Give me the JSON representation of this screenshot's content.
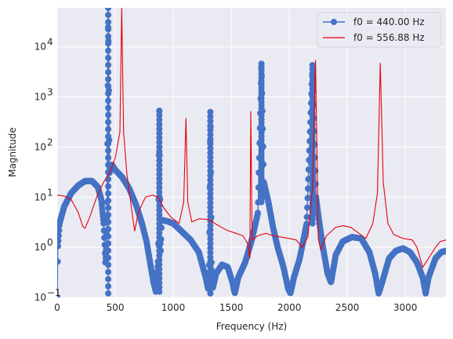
{
  "chart_data": {
    "type": "line",
    "title": "",
    "xlabel": "Frequency (Hz)",
    "ylabel": "Magnitude",
    "xlim": [
      0,
      3350
    ],
    "ylim": [
      0.1,
      60000
    ],
    "yscale": "log",
    "grid": true,
    "legend_position": "top-right",
    "x_ticks": [
      0,
      500,
      1000,
      1500,
      2000,
      2500,
      3000
    ],
    "x_tick_labels": [
      "0",
      "500",
      "1000",
      "1500",
      "2000",
      "2500",
      "3000"
    ],
    "y_ticks": [
      0.1,
      1,
      10,
      100,
      1000,
      10000
    ],
    "y_tick_labels": [
      {
        "base": "10",
        "exp": "−1"
      },
      {
        "base": "10",
        "exp": "0"
      },
      {
        "base": "10",
        "exp": "1"
      },
      {
        "base": "10",
        "exp": "2"
      },
      {
        "base": "10",
        "exp": "3"
      },
      {
        "base": "10",
        "exp": "4"
      }
    ],
    "series": [
      {
        "name": "f0 = 440.00 Hz",
        "color": "#4472c4",
        "style": "stem-markers",
        "base_curve": [
          [
            1,
            0.1
          ],
          [
            5,
            0.9
          ],
          [
            20,
            3.0
          ],
          [
            60,
            6.5
          ],
          [
            120,
            12
          ],
          [
            180,
            17
          ],
          [
            240,
            21
          ],
          [
            300,
            21
          ],
          [
            350,
            16
          ],
          [
            380,
            9
          ],
          [
            400,
            3
          ],
          [
            410,
            1.0
          ],
          [
            415,
            0.5
          ],
          [
            420,
            0.7
          ],
          [
            430,
            8
          ],
          [
            440,
            60000
          ],
          [
            450,
            30
          ],
          [
            470,
            45
          ],
          [
            500,
            35
          ],
          [
            560,
            25
          ],
          [
            620,
            15
          ],
          [
            680,
            7
          ],
          [
            730,
            3
          ],
          [
            770,
            1.3
          ],
          [
            800,
            0.5
          ],
          [
            830,
            0.2
          ],
          [
            850,
            0.13
          ],
          [
            870,
            0.6
          ],
          [
            880,
            530
          ],
          [
            890,
            0.6
          ],
          [
            900,
            3.5
          ],
          [
            950,
            3.3
          ],
          [
            1000,
            3.0
          ],
          [
            1080,
            2.0
          ],
          [
            1150,
            1.4
          ],
          [
            1220,
            0.8
          ],
          [
            1280,
            0.25
          ],
          [
            1300,
            0.15
          ],
          [
            1310,
            0.5
          ],
          [
            1320,
            500
          ],
          [
            1330,
            0.5
          ],
          [
            1340,
            0.15
          ],
          [
            1370,
            0.3
          ],
          [
            1420,
            0.45
          ],
          [
            1470,
            0.4
          ],
          [
            1510,
            0.2
          ],
          [
            1530,
            0.12
          ],
          [
            1560,
            0.25
          ],
          [
            1620,
            0.5
          ],
          [
            1680,
            1.5
          ],
          [
            1730,
            5
          ],
          [
            1760,
            4600
          ],
          [
            1780,
            20
          ],
          [
            1820,
            8
          ],
          [
            1860,
            2.5
          ],
          [
            1900,
            1.0
          ],
          [
            1950,
            0.4
          ],
          [
            1990,
            0.15
          ],
          [
            2010,
            0.12
          ],
          [
            2040,
            0.25
          ],
          [
            2090,
            0.6
          ],
          [
            2150,
            3
          ],
          [
            2200,
            4300
          ],
          [
            2230,
            10
          ],
          [
            2260,
            3.0
          ],
          [
            2290,
            1.0
          ],
          [
            2330,
            0.3
          ],
          [
            2360,
            0.2
          ],
          [
            2400,
            0.7
          ],
          [
            2460,
            1.3
          ],
          [
            2540,
            1.6
          ],
          [
            2620,
            1.5
          ],
          [
            2690,
            0.8
          ],
          [
            2740,
            0.3
          ],
          [
            2770,
            0.12
          ],
          [
            2800,
            0.2
          ],
          [
            2860,
            0.6
          ],
          [
            2920,
            0.85
          ],
          [
            2980,
            0.95
          ],
          [
            3040,
            0.8
          ],
          [
            3100,
            0.5
          ],
          [
            3150,
            0.25
          ],
          [
            3175,
            0.12
          ],
          [
            3200,
            0.25
          ],
          [
            3260,
            0.6
          ],
          [
            3310,
            0.8
          ],
          [
            3350,
            0.85
          ]
        ],
        "stems": [
          {
            "x": 440,
            "top": 60000,
            "bottom": 0.12
          },
          {
            "x": 880,
            "top": 530,
            "bottom": 0.13
          },
          {
            "x": 1320,
            "top": 500,
            "bottom": 0.12
          },
          {
            "x": 1760,
            "top": 4600,
            "bottom": 8
          },
          {
            "x": 2200,
            "top": 4300,
            "bottom": 3
          }
        ]
      },
      {
        "name": "f0 = 556.88 Hz",
        "color": "#e8000b",
        "style": "line",
        "points": [
          [
            0,
            11
          ],
          [
            60,
            10.5
          ],
          [
            120,
            9
          ],
          [
            180,
            5
          ],
          [
            220,
            2.6
          ],
          [
            240,
            2.4
          ],
          [
            280,
            4
          ],
          [
            340,
            10
          ],
          [
            400,
            20
          ],
          [
            450,
            30
          ],
          [
            500,
            60
          ],
          [
            540,
            200
          ],
          [
            556,
            60000
          ],
          [
            572,
            200
          ],
          [
            600,
            30
          ],
          [
            640,
            6
          ],
          [
            667,
            2.1
          ],
          [
            700,
            5
          ],
          [
            760,
            10
          ],
          [
            820,
            11
          ],
          [
            870,
            10
          ],
          [
            920,
            6
          ],
          [
            980,
            4
          ],
          [
            1050,
            3
          ],
          [
            1090,
            8
          ],
          [
            1110,
            380
          ],
          [
            1125,
            8
          ],
          [
            1160,
            3.2
          ],
          [
            1220,
            3.7
          ],
          [
            1300,
            3.6
          ],
          [
            1380,
            2.8
          ],
          [
            1460,
            2.2
          ],
          [
            1540,
            1.9
          ],
          [
            1600,
            1.7
          ],
          [
            1640,
            1.2
          ],
          [
            1660,
            0.6
          ],
          [
            1668,
            520
          ],
          [
            1680,
            1.4
          ],
          [
            1730,
            1.7
          ],
          [
            1800,
            1.9
          ],
          [
            1860,
            1.7
          ],
          [
            1930,
            1.6
          ],
          [
            2000,
            1.5
          ],
          [
            2060,
            1.4
          ],
          [
            2110,
            1.0
          ],
          [
            2160,
            1.6
          ],
          [
            2200,
            15
          ],
          [
            2226,
            5500
          ],
          [
            2250,
            1.5
          ],
          [
            2270,
            0.9
          ],
          [
            2320,
            1.7
          ],
          [
            2400,
            2.5
          ],
          [
            2460,
            2.7
          ],
          [
            2530,
            2.5
          ],
          [
            2600,
            1.9
          ],
          [
            2660,
            1.5
          ],
          [
            2720,
            3
          ],
          [
            2760,
            12
          ],
          [
            2784,
            4800
          ],
          [
            2810,
            20
          ],
          [
            2850,
            3
          ],
          [
            2900,
            1.8
          ],
          [
            2980,
            1.5
          ],
          [
            3060,
            1.4
          ],
          [
            3100,
            1.0
          ],
          [
            3150,
            0.4
          ],
          [
            3200,
            0.6
          ],
          [
            3260,
            1.0
          ],
          [
            3300,
            1.3
          ],
          [
            3350,
            1.4
          ]
        ]
      }
    ]
  }
}
